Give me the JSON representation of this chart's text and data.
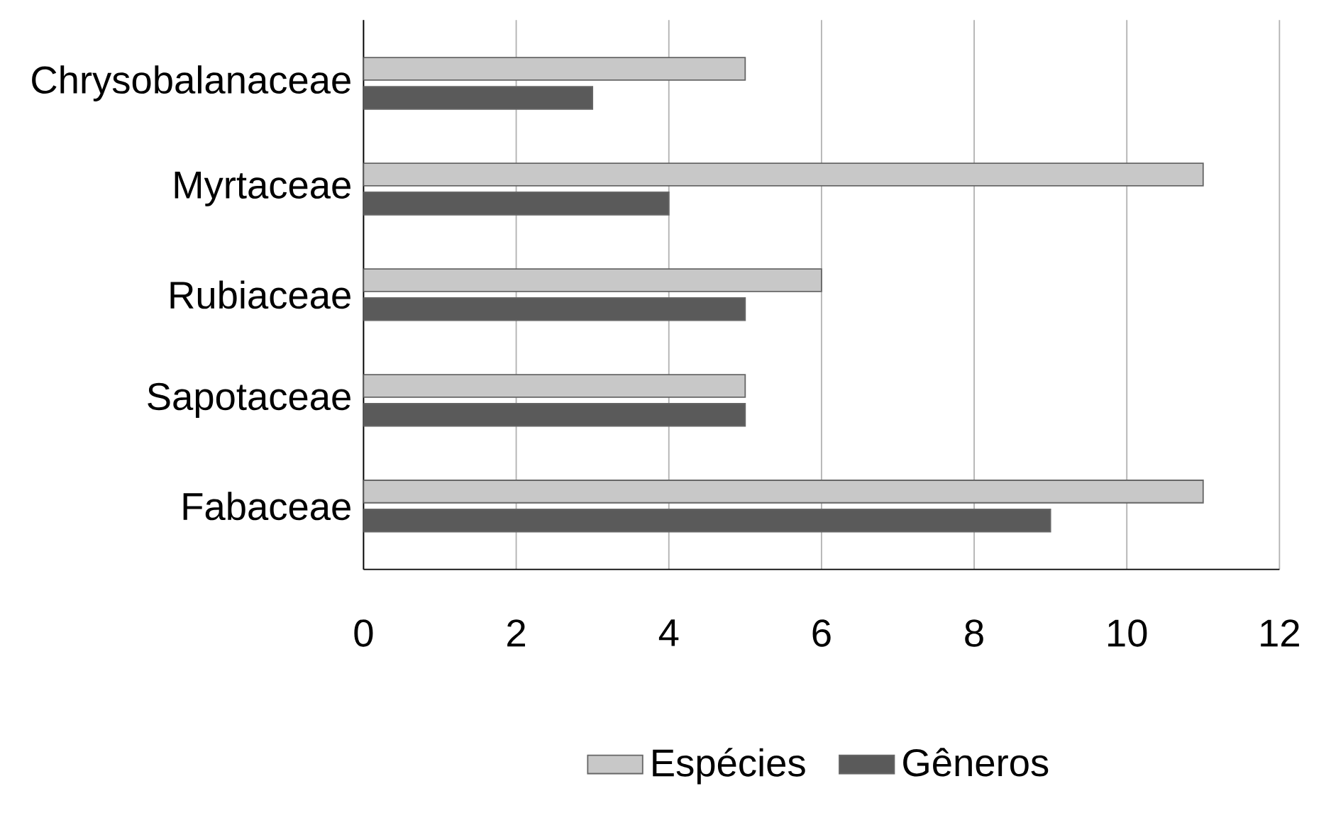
{
  "chart_data": {
    "type": "bar",
    "orientation": "horizontal",
    "categories": [
      "Chrysobalanaceae",
      "Myrtaceae",
      "Rubiaceae",
      "Sapotaceae",
      "Fabaceae"
    ],
    "series": [
      {
        "name": "Espécies",
        "color": "#c8c8c8",
        "values": [
          5,
          11,
          6,
          5,
          11
        ]
      },
      {
        "name": "Gêneros",
        "color": "#5a5a5a",
        "values": [
          3,
          4,
          5,
          5,
          9
        ]
      }
    ],
    "xlim": [
      0,
      12
    ],
    "xticks": [
      0,
      2,
      4,
      6,
      8,
      10,
      12
    ],
    "grid": "x",
    "legend": "bottom"
  }
}
